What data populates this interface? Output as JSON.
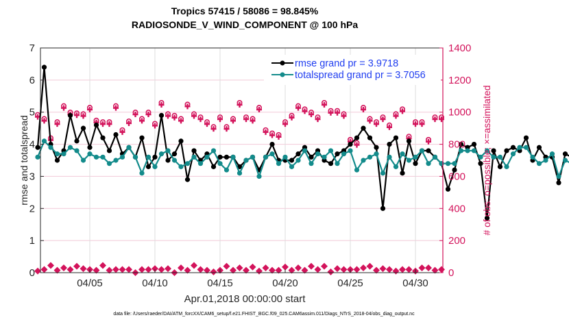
{
  "chart_data": {
    "type": "line",
    "title": "Tropics 57415 / 58086 = 98.845%",
    "subtitle": "RADIOSONDE_V_WIND_COMPONENT @ 100 hPa",
    "xlabel": "Apr.01,2018 00:00:00 start",
    "ylabel": "rmse and totalspread",
    "ylabel_right": "# of obs: o=possible; ×=assimilated",
    "footnote": "data file: /Users/raeder/DAI/ATM_forcXX/CAM6_setup/f.e21.FHIST_BGC.f09_025.CAM6assim.011/Diags_NTrS_2018-04/obs_diag_output.nc",
    "ylim": [
      0,
      7
    ],
    "ylim_right": [
      0,
      1400
    ],
    "xlim_days": [
      0,
      30.75
    ],
    "yticks": [
      "0",
      "1",
      "2",
      "3",
      "4",
      "5",
      "6",
      "7"
    ],
    "yticks_right": [
      "0",
      "200",
      "400",
      "600",
      "800",
      "1000",
      "1200",
      "1400"
    ],
    "xticks": [
      {
        "day": 4,
        "label": "04/05"
      },
      {
        "day": 9,
        "label": "04/10"
      },
      {
        "day": 14,
        "label": "04/15"
      },
      {
        "day": 19,
        "label": "04/20"
      },
      {
        "day": 24,
        "label": "04/25"
      },
      {
        "day": 29,
        "label": "04/30"
      }
    ],
    "grid": true,
    "legend_position": "top-right",
    "x_step_days": 0.5,
    "series": [
      {
        "name": "rmse grand pr = 3.9718",
        "color": "#000000",
        "axis": "left",
        "values": [
          3.9,
          6.4,
          4.0,
          3.5,
          3.8,
          4.9,
          4.1,
          4.5,
          3.9,
          4.6,
          4.2,
          3.8,
          4.3,
          3.7,
          3.9,
          3.6,
          4.2,
          3.3,
          3.6,
          4.9,
          3.5,
          3.7,
          4.1,
          2.9,
          3.8,
          3.5,
          3.7,
          3.3,
          3.6,
          3.6,
          3.6,
          3.3,
          3.5,
          3.6,
          3.2,
          3.6,
          4.0,
          3.5,
          3.5,
          3.5,
          3.7,
          3.9,
          3.6,
          3.8,
          3.5,
          3.4,
          3.7,
          3.8,
          4.0,
          4.2,
          4.5,
          4.2,
          3.9,
          2.0,
          4.0,
          4.2,
          3.1,
          4.1,
          3.4,
          3.8,
          3.8,
          3.6,
          3.4,
          2.6,
          3.2,
          4.0,
          3.9,
          4.0,
          3.4,
          1.7,
          3.8,
          3.3,
          3.8,
          3.9,
          3.8,
          4.2,
          3.5,
          3.9,
          3.6,
          3.6,
          2.8,
          3.7,
          3.6,
          4.0,
          3.6,
          3.1,
          4.2,
          4.0,
          3.6,
          4.5,
          3.9,
          3.9,
          3.8,
          3.4,
          4.6,
          4.0,
          3.7,
          3.3,
          4.4,
          3.8,
          4.0,
          3.6,
          3.4,
          4.6,
          4.0,
          3.8,
          3.7,
          3.9,
          4.2,
          4.2,
          3.4,
          2.6,
          4.3,
          5.2,
          4.2,
          3.8
        ]
      },
      {
        "name": "totalspread grand pr = 3.7056",
        "color": "#138b8b",
        "axis": "left",
        "values": [
          3.6,
          4.1,
          3.9,
          3.7,
          3.7,
          3.9,
          3.8,
          3.5,
          3.7,
          3.6,
          3.6,
          3.4,
          3.5,
          3.6,
          3.9,
          3.6,
          3.1,
          3.6,
          3.3,
          3.7,
          3.8,
          3.5,
          3.3,
          3.4,
          3.6,
          3.4,
          3.6,
          3.8,
          3.4,
          3.2,
          3.6,
          3.1,
          3.5,
          3.6,
          3.0,
          3.6,
          3.7,
          3.4,
          3.6,
          3.3,
          3.5,
          3.8,
          3.4,
          3.7,
          3.6,
          3.8,
          3.4,
          3.7,
          3.8,
          3.2,
          3.5,
          3.6,
          3.7,
          3.1,
          3.6,
          3.3,
          3.7,
          3.5,
          3.6,
          3.8,
          3.4,
          3.6,
          3.4,
          3.4,
          3.4,
          3.8,
          3.8,
          3.8,
          3.6,
          3.8,
          3.6,
          3.6,
          3.3,
          3.7,
          3.9,
          3.9,
          3.6,
          3.4,
          3.5,
          3.7,
          3.0,
          3.5,
          3.4,
          3.7,
          3.5,
          3.8,
          3.4,
          3.1,
          3.7,
          3.6,
          3.8,
          3.5,
          3.0,
          3.8,
          3.7,
          3.5,
          3.1,
          3.6,
          3.8,
          3.2,
          3.0,
          3.6,
          3.7,
          3.5,
          3.8,
          3.6,
          3.7,
          3.5,
          3.8,
          3.6,
          3.6,
          3.9,
          3.8,
          3.6,
          3.8,
          3.4
        ]
      },
      {
        "name": "possible obs",
        "color": "#d3135b",
        "axis": "right",
        "marker": "o",
        "values": [
          975,
          950,
          830,
          930,
          1030,
          990,
          985,
          980,
          1020,
          940,
          930,
          930,
          1030,
          880,
          935,
          990,
          950,
          990,
          920,
          1050,
          980,
          970,
          950,
          1040,
          980,
          960,
          930,
          900,
          960,
          900,
          950,
          1050,
          960,
          950,
          1020,
          880,
          860,
          850,
          930,
          970,
          1030,
          1010,
          990,
          960,
          1050,
          1000,
          1000,
          980,
          820,
          800,
          1020,
          950,
          930,
          960,
          910,
          980,
          1010,
          840,
          930,
          930,
          820,
          960,
          960,
          880,
          870,
          920,
          940,
          1040,
          870,
          1000,
          920,
          920,
          960,
          950,
          880,
          830,
          820,
          940,
          920,
          900,
          940,
          880,
          950,
          960,
          1010,
          960,
          950,
          900,
          900,
          1000,
          870,
          960,
          970,
          1050,
          930,
          940,
          900,
          980,
          900,
          990,
          1000,
          960,
          930,
          970,
          850,
          970,
          950,
          880,
          860,
          950,
          930,
          900,
          1000,
          850,
          830,
          830
        ]
      },
      {
        "name": "assimilated obs",
        "color": "#d3135b",
        "axis": "right",
        "marker": "x",
        "values": [
          10,
          20,
          45,
          15,
          30,
          20,
          40,
          25,
          20,
          15,
          45,
          15,
          20,
          20,
          20,
          0,
          20,
          20,
          25,
          20,
          25,
          0,
          30,
          15,
          45,
          20,
          15,
          5,
          15,
          40,
          15,
          30,
          15,
          35,
          10,
          30,
          15,
          15,
          35,
          15,
          30,
          15,
          40,
          20,
          40,
          5,
          25,
          20,
          20,
          20,
          30,
          40,
          15,
          25,
          20,
          10,
          20,
          20,
          10,
          30,
          30,
          15,
          20,
          25,
          10,
          20,
          20,
          25,
          30,
          15,
          25,
          20,
          10,
          25,
          40,
          15,
          15,
          30,
          10,
          20,
          30,
          15,
          25,
          20,
          40,
          10,
          30,
          10,
          20,
          25,
          20,
          15,
          40,
          15,
          20,
          20,
          15,
          25,
          20,
          20,
          30,
          10,
          20,
          35,
          15,
          20,
          20,
          15,
          25,
          10,
          20,
          10,
          50,
          20,
          15,
          5
        ]
      }
    ]
  }
}
